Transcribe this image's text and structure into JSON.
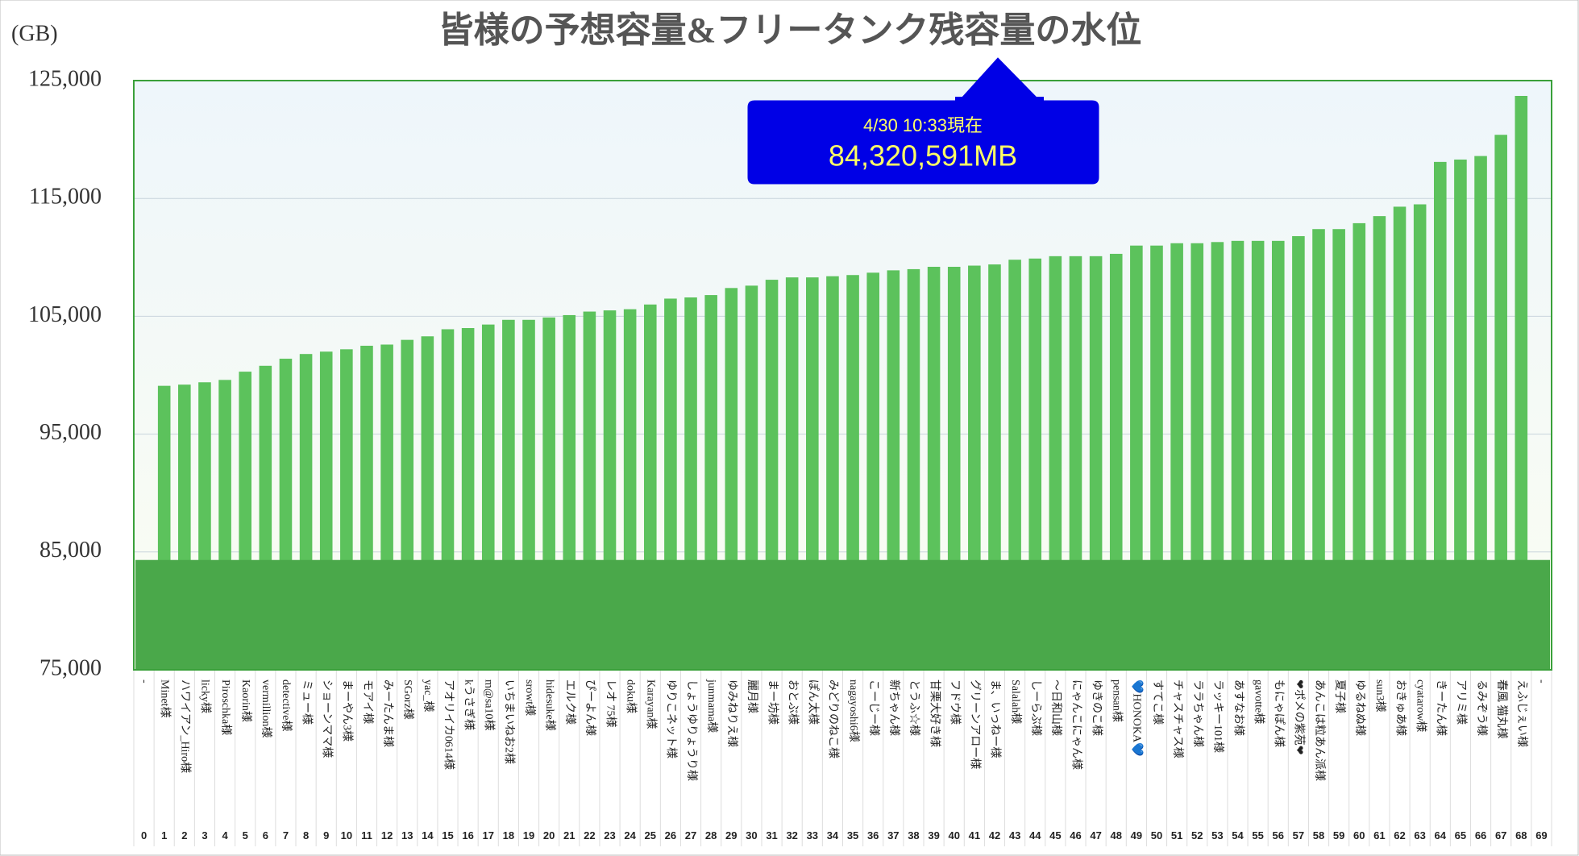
{
  "chart_data": {
    "type": "bar",
    "title": "皆様の予想容量&フリータンク残容量の水位",
    "y_unit": "(GB)",
    "annotation": {
      "time": "4/30 10:33現在",
      "amount": "84,320,591MB"
    },
    "water_level": 84320.591,
    "water_color": "#4aa84a",
    "color": "#5cc25c",
    "categories": [
      "-",
      "Minet様",
      "ハワイアン_Hiro様",
      "licky様",
      "Piroschka様",
      "Kaorin様",
      "vermillion様",
      "detective様",
      "ミュー様",
      "ショーンママ様",
      "まーやん3様",
      "モアイ様",
      "みーたんま様",
      "SGorz様",
      "yac_様",
      "アオリイカ0614様",
      "kうさぎ様",
      "m@sa10様",
      "いちまいねお2様",
      "srowt様",
      "hidesuke様",
      "エルク様",
      "ぴーよん様",
      "レオ 75様",
      "doku様",
      "Karayan様",
      "ゆりこネット様",
      "しょうゆりょうり様",
      "junmama様",
      "ゆみねりえ様",
      "麗月様",
      "まー坊様",
      "おとぶ様",
      "ぽん太様",
      "みどりのねこ様",
      "nagayoshi6様",
      "こーじー様",
      "新ちゃん様",
      "とうふ☆様",
      "甘栗大好き様",
      "フドウ様",
      "グリーンアロー様",
      "ま、いっねー様",
      "Salalah様",
      "しーらぶ様",
      "〜日和山様",
      "にゃんこにゃん様",
      "ゆきのこ様",
      "pensan様",
      "💙HONOKA💙",
      "すてこ様",
      "チャスチャス様",
      "ララちゃん様",
      "ラッキー101様",
      "あすなお様",
      "gavotte様",
      "もにゃぽん様",
      "❤ポメの紫苑❤",
      "あんこは粒あん派様",
      "夏子様",
      "ゆるねぬ様",
      "sun3様",
      "おきゅあ様",
      "cyatarow様",
      "きーたん様",
      "アリミ様",
      "るみぞう様",
      "春風 猫丸様",
      "えふじぇい様",
      "-"
    ],
    "slot_numbers": [
      0,
      1,
      2,
      3,
      4,
      5,
      6,
      7,
      8,
      9,
      10,
      11,
      12,
      13,
      14,
      15,
      16,
      17,
      18,
      19,
      20,
      21,
      22,
      23,
      24,
      25,
      26,
      27,
      28,
      29,
      30,
      31,
      32,
      33,
      34,
      35,
      36,
      37,
      38,
      39,
      40,
      41,
      42,
      43,
      44,
      45,
      46,
      47,
      48,
      49,
      50,
      51,
      52,
      53,
      54,
      55,
      56,
      57,
      58,
      59,
      60,
      61,
      62,
      63,
      64,
      65,
      66,
      67,
      68,
      69
    ],
    "values": [
      null,
      99100,
      99200,
      99400,
      99600,
      100300,
      100800,
      101400,
      101800,
      102000,
      102200,
      102500,
      102600,
      103000,
      103300,
      103900,
      104000,
      104300,
      104700,
      104700,
      104900,
      105100,
      105400,
      105500,
      105600,
      106000,
      106500,
      106600,
      106800,
      107400,
      107600,
      108100,
      108300,
      108300,
      108400,
      108500,
      108700,
      108900,
      109000,
      109200,
      109200,
      109300,
      109400,
      109800,
      109900,
      110100,
      110100,
      110100,
      110300,
      111000,
      111000,
      111200,
      111200,
      111300,
      111400,
      111400,
      111400,
      111800,
      112400,
      112400,
      112900,
      113500,
      114300,
      114500,
      118100,
      118300,
      118600,
      120400,
      123700,
      null
    ],
    "ylim": [
      75000,
      125000
    ],
    "yticks": [
      {
        "value": 75000,
        "label": "75,000"
      },
      {
        "value": 85000,
        "label": "85,000"
      },
      {
        "value": 95000,
        "label": "95,000"
      },
      {
        "value": 105000,
        "label": "105,000"
      },
      {
        "value": 115000,
        "label": "115,000"
      },
      {
        "value": 125000,
        "label": "125,000"
      }
    ],
    "grid": true
  }
}
